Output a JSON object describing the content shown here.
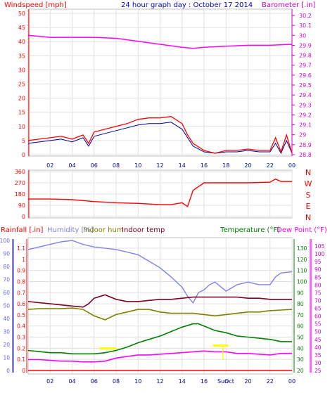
{
  "header": {
    "windspeed_label": "Windspeed [mph]",
    "title": "24 hour graph day : October 17 2014",
    "barometer_label": "Barometer [.in]"
  },
  "colors": {
    "windspeed": "#ff0000",
    "wind_avg": "#000099",
    "barometer": "#ff00ff",
    "rain": "#ff0000",
    "humidity": "#8080ee",
    "indoor_hum": "#808000",
    "indoor_temp": "#800020",
    "temperature": "#008000",
    "dew_point": "#ff00ff",
    "title_blue": "#0000cc",
    "axis_right_purple": "#cc00cc",
    "axis_left_blue": "#6666ee",
    "axis_right_green": "#008000",
    "axis_left_red": "#ff0000"
  },
  "chart_data": [
    {
      "type": "line",
      "title": "24 hour graph day : October 17 2014",
      "xlabel": "",
      "x_ticks": [
        "02",
        "04",
        "06",
        "08",
        "10",
        "12",
        "14",
        "16",
        "18",
        "20",
        "22",
        "00"
      ],
      "y_left_label": "Windspeed [mph]",
      "y_left_ticks": [
        "0",
        "5",
        "10",
        "15",
        "20",
        "25",
        "30",
        "35",
        "40",
        "45",
        "50"
      ],
      "y_left_range": [
        0,
        50
      ],
      "y_right_label": "Barometer [.in]",
      "y_right_ticks": [
        "28.8",
        "28.9",
        "29",
        "29.1",
        "29.2",
        "29.3",
        "29.4",
        "29.5",
        "29.6",
        "29.7",
        "29.8",
        "29.9",
        "30",
        "30.1",
        "30.2"
      ],
      "y_right_range": [
        28.8,
        30.25
      ],
      "grid": true,
      "series": [
        {
          "name": "Windspeed",
          "axis": "left",
          "x": [
            0,
            1,
            2,
            3,
            4,
            5,
            5.5,
            6,
            7,
            8,
            9,
            10,
            11,
            12,
            13,
            14,
            14.5,
            15,
            16,
            17,
            18,
            19,
            20,
            21,
            22,
            22.5,
            23,
            23.5,
            24
          ],
          "y": [
            5,
            5.5,
            6,
            6.5,
            5.5,
            7,
            4,
            8,
            9,
            10,
            11,
            12.5,
            13,
            13,
            13.5,
            11,
            7,
            4,
            1.5,
            0.5,
            1.5,
            1.5,
            2,
            1.5,
            1.5,
            6,
            1,
            7,
            0.5
          ]
        },
        {
          "name": "Average wind",
          "axis": "left",
          "x": [
            0,
            1,
            2,
            3,
            4,
            5,
            5.5,
            6,
            7,
            8,
            9,
            10,
            11,
            12,
            13,
            14,
            14.5,
            15,
            16,
            17,
            18,
            19,
            20,
            21,
            22,
            22.5,
            23,
            23.5,
            24
          ],
          "y": [
            4,
            4.5,
            5,
            5.5,
            4.5,
            6,
            3,
            6.5,
            7.5,
            8.5,
            9.5,
            10.5,
            11,
            11,
            11.5,
            9,
            6,
            3,
            1,
            0.5,
            1,
            1,
            1.5,
            1,
            1,
            4,
            0.5,
            5,
            0.5
          ]
        },
        {
          "name": "Barometer",
          "axis": "right",
          "x": [
            0,
            2,
            4,
            6,
            8,
            10,
            12,
            14,
            15,
            16,
            18,
            20,
            22,
            24
          ],
          "y": [
            30.0,
            29.98,
            29.98,
            29.98,
            29.97,
            29.94,
            29.91,
            29.88,
            29.87,
            29.88,
            29.89,
            29.9,
            29.9,
            29.91
          ]
        }
      ]
    },
    {
      "type": "line",
      "title": "",
      "x_ticks": [
        "02",
        "04",
        "06",
        "08",
        "10",
        "12",
        "14",
        "16",
        "18",
        "20",
        "22",
        "00"
      ],
      "y_left_ticks": [
        "0",
        "90",
        "180",
        "270",
        "360"
      ],
      "y_left_range": [
        0,
        360
      ],
      "y_right_ticks": [
        "N",
        "W",
        "S",
        "E",
        "N"
      ],
      "grid": true,
      "series": [
        {
          "name": "Wind direction",
          "x": [
            0,
            2,
            4,
            6,
            8,
            10,
            12,
            13,
            14,
            14.5,
            15,
            16,
            17,
            18,
            20,
            22,
            22.5,
            23,
            24
          ],
          "y": [
            140,
            140,
            135,
            120,
            110,
            105,
            95,
            95,
            110,
            80,
            210,
            270,
            270,
            270,
            270,
            275,
            300,
            280,
            280
          ]
        }
      ]
    },
    {
      "type": "line",
      "title": "",
      "x_ticks": [
        "02",
        "04",
        "06",
        "08",
        "10",
        "12",
        "14",
        "16",
        "Sun",
        "Oct",
        "20",
        "22",
        "00"
      ],
      "legend_labels": [
        "Rainfall [.in]",
        "Humidity [%]",
        "Indoor hum",
        "Indoor temp",
        "Temperature (°F)",
        "Dew Point (°F)"
      ],
      "y_left_rain_ticks": [
        "0",
        "0.1",
        "0.2",
        "0.3",
        "0.4",
        "0.5",
        "0.6",
        "0.7",
        "0.8",
        "0.9",
        "1",
        "1.1"
      ],
      "y_left_rain_range": [
        0,
        1.15
      ],
      "y_left_hum_ticks": [
        "0",
        "10",
        "20",
        "30",
        "40",
        "50",
        "60",
        "70",
        "80",
        "90",
        "100"
      ],
      "y_left_hum_range": [
        0,
        100
      ],
      "y_right_temp_ticks": [
        "20",
        "30",
        "40",
        "50",
        "60",
        "70",
        "80",
        "90",
        "100",
        "110",
        "120",
        "130"
      ],
      "y_right_temp_range": [
        20,
        135
      ],
      "y_right_dew_ticks": [
        "25",
        "30",
        "35",
        "40",
        "45",
        "50",
        "55",
        "60",
        "65",
        "70",
        "75",
        "80",
        "85",
        "90",
        "95",
        "100",
        "105"
      ],
      "y_right_dew_range": [
        25,
        108
      ],
      "grid": true,
      "series": [
        {
          "name": "Rainfall [.in]",
          "axis": "rain",
          "x": [
            0,
            24
          ],
          "y": [
            0,
            0
          ]
        },
        {
          "name": "Humidity [%]",
          "axis": "humidity",
          "x": [
            0,
            1,
            2,
            3,
            4,
            5,
            6,
            7,
            8,
            9,
            10,
            11,
            12,
            13,
            14,
            14.5,
            15,
            15.5,
            16,
            16.5,
            17,
            18,
            19,
            20,
            21,
            22,
            22.5,
            23,
            24
          ],
          "y": [
            93,
            95,
            97,
            99,
            100,
            97,
            95,
            94,
            93,
            91,
            89,
            84,
            79,
            72,
            64,
            57,
            52,
            60,
            62,
            66,
            68,
            61,
            66,
            68,
            66,
            66,
            72,
            75,
            76
          ]
        },
        {
          "name": "Indoor hum",
          "axis": "humidity",
          "x": [
            0,
            1,
            2,
            3,
            4,
            5,
            6,
            7,
            8,
            9,
            10,
            11,
            12,
            13,
            14,
            15,
            16,
            17,
            18,
            19,
            20,
            21,
            22,
            23,
            24
          ],
          "y": [
            47,
            47.5,
            47.5,
            47.5,
            48,
            47,
            42,
            39,
            43,
            45,
            47,
            47,
            45,
            44,
            44,
            44,
            43,
            42,
            43,
            44,
            45,
            45,
            46,
            46.5,
            47
          ]
        },
        {
          "name": "Indoor temp",
          "axis": "temperature",
          "x": [
            0,
            1,
            2,
            3,
            4,
            5,
            5.5,
            6,
            7,
            8,
            9,
            10,
            11,
            12,
            13,
            14,
            15,
            16,
            17,
            18,
            19,
            20,
            21,
            22,
            23,
            24
          ],
          "y": [
            82,
            81,
            80,
            79,
            78,
            77,
            80,
            85,
            88,
            84,
            82,
            82,
            83,
            84,
            84,
            85,
            86,
            86,
            86,
            86,
            86,
            85,
            85,
            84,
            84,
            84
          ]
        },
        {
          "name": "Temperature (°F)",
          "axis": "temperature",
          "x": [
            0,
            1,
            2,
            3,
            4,
            5,
            6,
            7,
            8,
            9,
            10,
            11,
            12,
            13,
            14,
            15,
            15.5,
            16,
            17,
            18,
            19,
            20,
            21,
            22,
            23,
            24
          ],
          "y": [
            38,
            37,
            36,
            36,
            35,
            35,
            35,
            36,
            38,
            41,
            45,
            48,
            51,
            55,
            59,
            62,
            62,
            60,
            56,
            54,
            51,
            50,
            49,
            48,
            46,
            46
          ]
        },
        {
          "name": "Dew Point (°F)",
          "axis": "dewpoint",
          "x": [
            0,
            1,
            2,
            3,
            4,
            5,
            6,
            7,
            8,
            9,
            10,
            11,
            12,
            13,
            14,
            15,
            16,
            17,
            18,
            19,
            20,
            21,
            22,
            23,
            24
          ],
          "y": [
            32,
            32,
            31.5,
            31,
            31,
            30.5,
            30.5,
            31,
            33,
            34,
            35,
            35,
            35.5,
            36,
            36.5,
            37,
            37.5,
            37,
            37,
            36,
            36,
            35.5,
            35,
            36,
            36
          ]
        }
      ]
    }
  ]
}
